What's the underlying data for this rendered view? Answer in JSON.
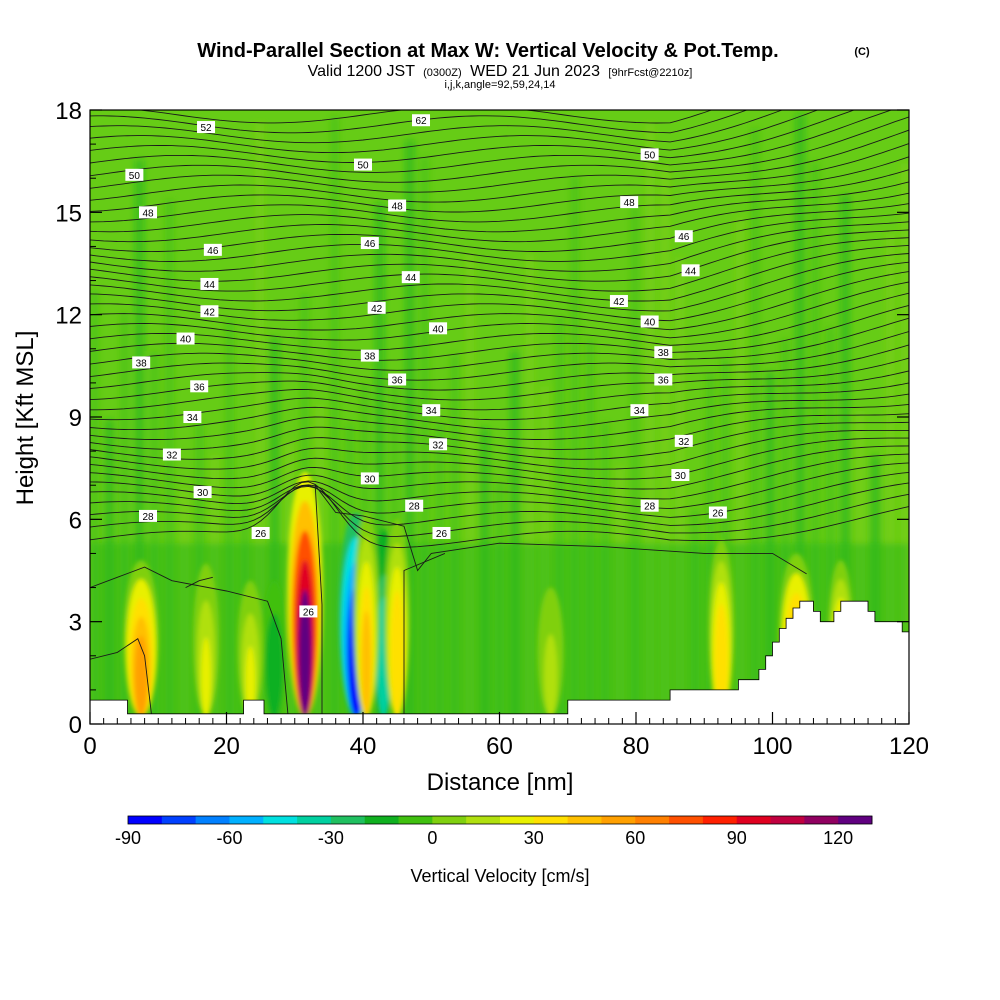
{
  "chart_data": {
    "type": "heatmap",
    "title": "Wind-Parallel Section at Max W: Vertical Velocity & Pot.Temp.",
    "title_mark": "(C)",
    "subtitle_main": "Valid 1200 JST",
    "subtitle_utc": "(0300Z)",
    "subtitle_date": "WED 21 Jun 2023",
    "subtitle_fcst": "[9hrFcst@2210z]",
    "subtitle_ijk": "i,j,k,angle=92,59,24,14",
    "xlabel": "Distance [nm]",
    "ylabel": "Height [Kft MSL]",
    "xlim": [
      0,
      120
    ],
    "ylim": [
      0,
      18
    ],
    "xticks": [
      "0",
      "20",
      "40",
      "60",
      "80",
      "100",
      "120"
    ],
    "yticks": [
      "0",
      "3",
      "6",
      "9",
      "12",
      "15",
      "18"
    ],
    "colorbar": {
      "label": "Vertical Velocity [cm/s]",
      "ticks": [
        "-90",
        "-60",
        "-30",
        "0",
        "30",
        "60",
        "90",
        "120"
      ],
      "colors": [
        "#0000ff",
        "#0040ff",
        "#0080ff",
        "#00b0ff",
        "#00e0e0",
        "#00d0a0",
        "#20c060",
        "#10b020",
        "#40c010",
        "#80d010",
        "#b0e010",
        "#e8f000",
        "#ffe000",
        "#ffc000",
        "#ffa000",
        "#ff8000",
        "#ff5000",
        "#ff2000",
        "#e00020",
        "#c00040",
        "#900060",
        "#600080"
      ]
    },
    "background_color": "#66cc16",
    "updraft_cores": [
      {
        "x": 7.5,
        "top": 4.6,
        "peak": 65
      },
      {
        "x": 17,
        "top": 4.5,
        "peak": 30
      },
      {
        "x": 23.5,
        "top": 4.0,
        "peak": 25
      },
      {
        "x": 31.5,
        "top": 7.2,
        "peak": 135
      },
      {
        "x": 40.5,
        "top": 6.0,
        "peak": 50
      },
      {
        "x": 45,
        "top": 5.8,
        "peak": 45
      },
      {
        "x": 67.5,
        "top": 3.8,
        "peak": 22
      },
      {
        "x": 92.5,
        "top": 5.2,
        "peak": 45
      },
      {
        "x": 103.5,
        "top": 4.8,
        "peak": 70
      },
      {
        "x": 110,
        "top": 4.6,
        "peak": 55
      }
    ],
    "downdraft_cores": [
      {
        "x": 39,
        "top": 6.0,
        "peak": -95
      },
      {
        "x": 43,
        "top": 5.5,
        "peak": -35
      },
      {
        "x": 27,
        "top": 4.0,
        "peak": -15
      }
    ],
    "terrain": [
      [
        0,
        0.7
      ],
      [
        5.5,
        0.7
      ],
      [
        5.5,
        0.3
      ],
      [
        20,
        0.3
      ],
      [
        20,
        0.3
      ],
      [
        21.5,
        0.3
      ],
      [
        21.5,
        0.3
      ],
      [
        22.5,
        0.3
      ],
      [
        22.5,
        0.7
      ],
      [
        25.5,
        0.7
      ],
      [
        25.5,
        0.3
      ],
      [
        70,
        0.3
      ],
      [
        70,
        0.7
      ],
      [
        85,
        0.7
      ],
      [
        85,
        1.0
      ],
      [
        95,
        1.0
      ],
      [
        95,
        1.3
      ],
      [
        98,
        1.3
      ],
      [
        98,
        1.6
      ],
      [
        99,
        1.6
      ],
      [
        99,
        2.0
      ],
      [
        100,
        2.0
      ],
      [
        100,
        2.4
      ],
      [
        101,
        2.4
      ],
      [
        101,
        2.8
      ],
      [
        102,
        2.8
      ],
      [
        102,
        3.1
      ],
      [
        103,
        3.1
      ],
      [
        103,
        3.4
      ],
      [
        104,
        3.4
      ],
      [
        104,
        3.6
      ],
      [
        106,
        3.6
      ],
      [
        106,
        3.3
      ],
      [
        107,
        3.3
      ],
      [
        107,
        3.0
      ],
      [
        109,
        3.0
      ],
      [
        109,
        3.3
      ],
      [
        110,
        3.3
      ],
      [
        110,
        3.6
      ],
      [
        114,
        3.6
      ],
      [
        114,
        3.3
      ],
      [
        115,
        3.3
      ],
      [
        115,
        3.0
      ],
      [
        119,
        3.0
      ],
      [
        119,
        2.7
      ],
      [
        120.5,
        2.7
      ]
    ],
    "theta_labels": [
      {
        "x": 17,
        "y": 17.5,
        "text": "52"
      },
      {
        "x": 48.5,
        "y": 17.7,
        "text": "62"
      },
      {
        "x": 6.5,
        "y": 16.1,
        "text": "50"
      },
      {
        "x": 40,
        "y": 16.4,
        "text": "50"
      },
      {
        "x": 82,
        "y": 16.7,
        "text": "50"
      },
      {
        "x": 8.5,
        "y": 15.0,
        "text": "48"
      },
      {
        "x": 45,
        "y": 15.2,
        "text": "48"
      },
      {
        "x": 79,
        "y": 15.3,
        "text": "48"
      },
      {
        "x": 18,
        "y": 13.9,
        "text": "46"
      },
      {
        "x": 41,
        "y": 14.1,
        "text": "46"
      },
      {
        "x": 87,
        "y": 14.3,
        "text": "46"
      },
      {
        "x": 17.5,
        "y": 12.9,
        "text": "44"
      },
      {
        "x": 47,
        "y": 13.1,
        "text": "44"
      },
      {
        "x": 88,
        "y": 13.3,
        "text": "44"
      },
      {
        "x": 17.5,
        "y": 12.1,
        "text": "42"
      },
      {
        "x": 42,
        "y": 12.2,
        "text": "42"
      },
      {
        "x": 77.5,
        "y": 12.4,
        "text": "42"
      },
      {
        "x": 14,
        "y": 11.3,
        "text": "40"
      },
      {
        "x": 51,
        "y": 11.6,
        "text": "40"
      },
      {
        "x": 82,
        "y": 11.8,
        "text": "40"
      },
      {
        "x": 7.5,
        "y": 10.6,
        "text": "38"
      },
      {
        "x": 41,
        "y": 10.8,
        "text": "38"
      },
      {
        "x": 84,
        "y": 10.9,
        "text": "38"
      },
      {
        "x": 16,
        "y": 9.9,
        "text": "36"
      },
      {
        "x": 45,
        "y": 10.1,
        "text": "36"
      },
      {
        "x": 84,
        "y": 10.1,
        "text": "36"
      },
      {
        "x": 15,
        "y": 9.0,
        "text": "34"
      },
      {
        "x": 50,
        "y": 9.2,
        "text": "34"
      },
      {
        "x": 80.5,
        "y": 9.2,
        "text": "34"
      },
      {
        "x": 12,
        "y": 7.9,
        "text": "32"
      },
      {
        "x": 51,
        "y": 8.2,
        "text": "32"
      },
      {
        "x": 87,
        "y": 8.3,
        "text": "32"
      },
      {
        "x": 16.5,
        "y": 6.8,
        "text": "30"
      },
      {
        "x": 41,
        "y": 7.2,
        "text": "30"
      },
      {
        "x": 86.5,
        "y": 7.3,
        "text": "30"
      },
      {
        "x": 8.5,
        "y": 6.1,
        "text": "28"
      },
      {
        "x": 47.5,
        "y": 6.4,
        "text": "28"
      },
      {
        "x": 82,
        "y": 6.4,
        "text": "28"
      },
      {
        "x": 25,
        "y": 5.6,
        "text": "26"
      },
      {
        "x": 51.5,
        "y": 5.6,
        "text": "26"
      },
      {
        "x": 92,
        "y": 6.2,
        "text": "26"
      },
      {
        "x": 32,
        "y": 3.3,
        "text": "26"
      }
    ]
  }
}
